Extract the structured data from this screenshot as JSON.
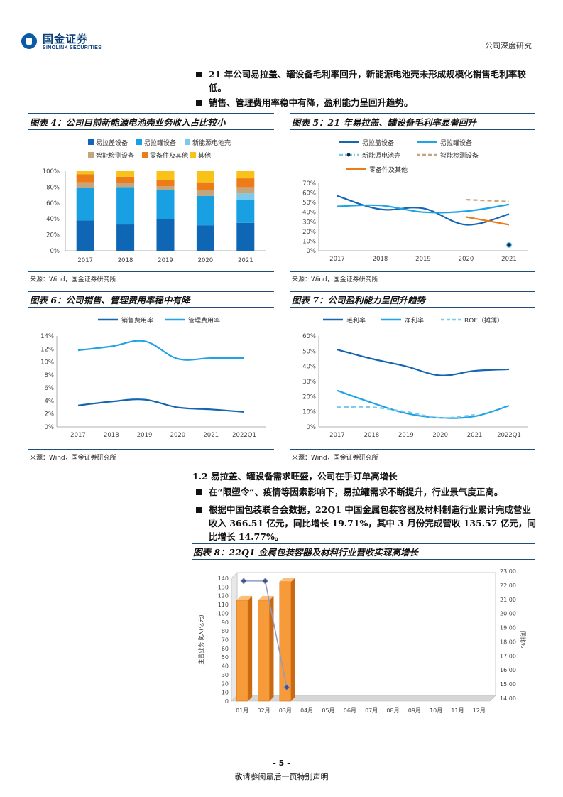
{
  "header": {
    "logo_cn": "国金证券",
    "logo_en": "SINOLINK SECURITIES",
    "report_type": "公司深度研究"
  },
  "intro_bullets": [
    "21 年公司易拉盖、罐设备毛利率回升，新能源电池壳未形成规模化销售毛利率较低。",
    "销售、管理费用率稳中有降，盈利能力呈回升趋势。"
  ],
  "figures": {
    "fig4_title": "图表 4：公司目前新能源电池壳业务收入占比较小",
    "fig5_title": "图表 5：21 年易拉盖、罐设备毛利率显著回升",
    "fig6_title": "图表 6：公司销售、管理费用率稳中有降",
    "fig7_title": "图表 7：公司盈利能力呈回升趋势",
    "fig8_title": "图表 8：22Q1 金属包装容器及材料行业营收实现高增长",
    "source": "来源：Wind，国金证券研究所"
  },
  "section": {
    "heading": "1.2 易拉盖、罐设备需求旺盛，公司在手订单高增长",
    "bullets": [
      "在“限塑令”、疫情等因素影响下，易拉罐需求不断提升，行业景气度正高。",
      "根据中国包装联合会数据，22Q1 中国金属包装容器及材料制造行业累计完成营业收入 366.51 亿元，同比增长 19.71%，其中 3 月份完成营收 135.57 亿元，同比增长 14.77%。"
    ]
  },
  "footer": {
    "page": "- 5 -",
    "disclaimer": "敬请参阅最后一页特别声明"
  },
  "chart_data": [
    {
      "id": "fig4",
      "type": "bar",
      "stacked": true,
      "categories": [
        "2017",
        "2018",
        "2019",
        "2020",
        "2021"
      ],
      "ylim": [
        0,
        100
      ],
      "yticks": [
        "0%",
        "20%",
        "40%",
        "60%",
        "80%",
        "100%"
      ],
      "series": [
        {
          "name": "易拉盖设备",
          "color": "#0e66b4",
          "values": [
            38,
            33,
            40,
            32,
            35
          ]
        },
        {
          "name": "易拉罐设备",
          "color": "#19a0e3",
          "values": [
            41,
            47,
            36,
            37,
            29
          ]
        },
        {
          "name": "新能源电池壳",
          "color": "#7cc9ea",
          "values": [
            0,
            0,
            0,
            0,
            8
          ]
        },
        {
          "name": "智能检测设备",
          "color": "#c4a57c",
          "values": [
            7,
            5,
            5,
            7,
            8
          ]
        },
        {
          "name": "零备件及其他",
          "color": "#ed7b17",
          "values": [
            10,
            8,
            8,
            10,
            11
          ]
        },
        {
          "name": "其他",
          "color": "#f8c218",
          "values": [
            4,
            7,
            11,
            14,
            9
          ]
        }
      ]
    },
    {
      "id": "fig5",
      "type": "line",
      "x": [
        "2017",
        "2018",
        "2019",
        "2020",
        "2021"
      ],
      "ylim": [
        0,
        70
      ],
      "yticks": [
        "0%",
        "10%",
        "20%",
        "30%",
        "40%",
        "50%",
        "60%",
        "70%"
      ],
      "series": [
        {
          "name": "易拉盖设备",
          "color": "#1565b0",
          "style": "solid",
          "values": [
            57,
            43,
            44,
            27,
            38
          ]
        },
        {
          "name": "易拉罐设备",
          "color": "#1fa3e6",
          "style": "solid",
          "values": [
            46,
            47,
            40,
            41,
            48
          ]
        },
        {
          "name": "新能源电池壳",
          "color": "#7cc9ea",
          "style": "dash-dot",
          "values": [
            null,
            null,
            null,
            null,
            6
          ]
        },
        {
          "name": "智能检测设备",
          "color": "#c4a57c",
          "style": "dashed",
          "values": [
            null,
            null,
            null,
            53,
            51
          ]
        },
        {
          "name": "零备件及其他",
          "color": "#ed7b17",
          "style": "solid",
          "values": [
            null,
            null,
            null,
            35,
            27
          ]
        }
      ]
    },
    {
      "id": "fig6",
      "type": "line",
      "x": [
        "2017",
        "2018",
        "2019",
        "2020",
        "2021",
        "2022Q1"
      ],
      "ylim": [
        0,
        14
      ],
      "yticks": [
        "0%",
        "2%",
        "4%",
        "6%",
        "8%",
        "10%",
        "12%",
        "14%"
      ],
      "series": [
        {
          "name": "销售费用率",
          "color": "#1565b0",
          "style": "solid",
          "values": [
            3.3,
            3.9,
            4.2,
            3.0,
            2.7,
            2.3
          ]
        },
        {
          "name": "管理费用率",
          "color": "#1fa3e6",
          "style": "solid",
          "values": [
            11.8,
            12.4,
            13.2,
            10.5,
            10.6,
            10.6
          ]
        }
      ]
    },
    {
      "id": "fig7",
      "type": "line",
      "x": [
        "2017",
        "2018",
        "2019",
        "2020",
        "2021",
        "2022Q1"
      ],
      "ylim": [
        0,
        60
      ],
      "yticks": [
        "0%",
        "10%",
        "20%",
        "30%",
        "40%",
        "50%",
        "60%"
      ],
      "series": [
        {
          "name": "毛利率",
          "color": "#1565b0",
          "style": "solid",
          "values": [
            51,
            45,
            40,
            34,
            37,
            38
          ]
        },
        {
          "name": "净利率",
          "color": "#1fa3e6",
          "style": "solid",
          "values": [
            24,
            16,
            9,
            6,
            7,
            14
          ]
        },
        {
          "name": "ROE（摊薄）",
          "color": "#7cc9ea",
          "style": "dashed",
          "values": [
            13,
            13,
            10,
            6,
            8,
            null
          ]
        }
      ]
    },
    {
      "id": "fig8",
      "type": "bar",
      "categories": [
        "01月",
        "02月",
        "03月",
        "04月",
        "05月",
        "06月",
        "07月",
        "08月",
        "09月",
        "10月",
        "11月",
        "12月"
      ],
      "ylabel": "主营业务收入(亿元)",
      "y2label": "同比%",
      "ylim": [
        0,
        140
      ],
      "yticks": [
        "0",
        "10",
        "20",
        "30",
        "40",
        "50",
        "60",
        "70",
        "80",
        "90",
        "100",
        "110",
        "120",
        "130",
        "140"
      ],
      "y2lim": [
        14,
        23
      ],
      "y2ticks": [
        "14.00",
        "15.00",
        "16.00",
        "17.00",
        "18.00",
        "19.00",
        "20.00",
        "21.00",
        "22.00",
        "23.00"
      ],
      "bar_color": "#f79a3a",
      "line_color": "#8e9ac7",
      "values": [
        115,
        115,
        136,
        null,
        null,
        null,
        null,
        null,
        null,
        null,
        null,
        null
      ],
      "yoy": [
        22.3,
        22.3,
        14.77,
        null,
        null,
        null,
        null,
        null,
        null,
        null,
        null,
        null
      ]
    }
  ]
}
